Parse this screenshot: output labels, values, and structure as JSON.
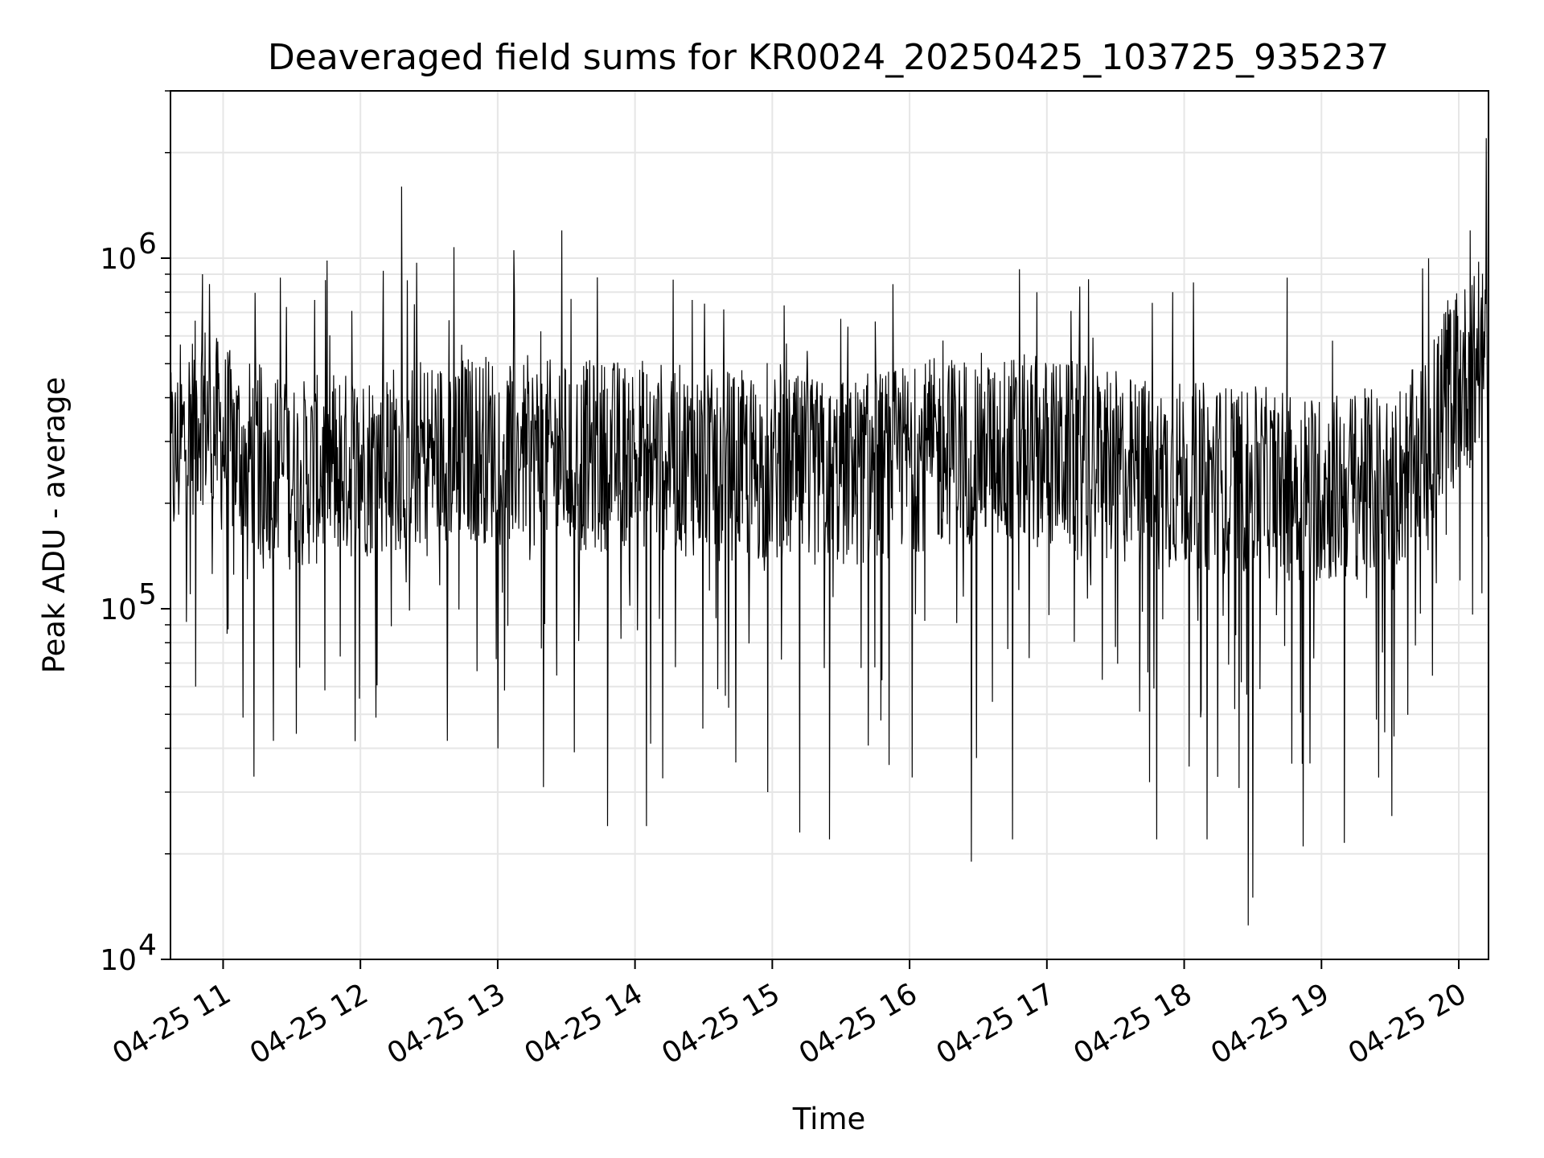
{
  "chart_data": {
    "type": "line",
    "title": "Deaveraged field sums for KR0024_20250425_103725_935237",
    "xlabel": "Time",
    "ylabel": "Peak ADU - average",
    "yscale": "log",
    "ylim": [
      10000,
      3000000
    ],
    "xlim": [
      "2025-04-25 10:37",
      "2025-04-25 20:13"
    ],
    "grid": true,
    "line_color": "#000000",
    "grid_color": "#e6e6e6",
    "x_ticks": [
      {
        "value": "2025-04-25 11:00",
        "label": "04-25 11"
      },
      {
        "value": "2025-04-25 12:00",
        "label": "04-25 12"
      },
      {
        "value": "2025-04-25 13:00",
        "label": "04-25 13"
      },
      {
        "value": "2025-04-25 14:00",
        "label": "04-25 14"
      },
      {
        "value": "2025-04-25 15:00",
        "label": "04-25 15"
      },
      {
        "value": "2025-04-25 16:00",
        "label": "04-25 16"
      },
      {
        "value": "2025-04-25 17:00",
        "label": "04-25 17"
      },
      {
        "value": "2025-04-25 18:00",
        "label": "04-25 18"
      },
      {
        "value": "2025-04-25 19:00",
        "label": "04-25 19"
      },
      {
        "value": "2025-04-25 20:00",
        "label": "04-25 20"
      }
    ],
    "y_ticks": [
      {
        "value": 10000,
        "base": "10",
        "exp": "4"
      },
      {
        "value": 100000,
        "base": "10",
        "exp": "5"
      },
      {
        "value": 1000000,
        "base": "10",
        "exp": "6"
      }
    ],
    "series": [
      {
        "trend": [
          {
            "x": "2025-04-25 10:37",
            "y": 250000
          },
          {
            "x": "2025-04-25 10:50",
            "y": 380000
          },
          {
            "x": "2025-04-25 11:00",
            "y": 300000
          },
          {
            "x": "2025-04-25 11:30",
            "y": 240000
          },
          {
            "x": "2025-04-25 12:00",
            "y": 260000
          },
          {
            "x": "2025-04-25 12:30",
            "y": 280000
          },
          {
            "x": "2025-04-25 13:00",
            "y": 290000
          },
          {
            "x": "2025-04-25 13:30",
            "y": 270000
          },
          {
            "x": "2025-04-25 14:00",
            "y": 280000
          },
          {
            "x": "2025-04-25 14:30",
            "y": 260000
          },
          {
            "x": "2025-04-25 15:00",
            "y": 250000
          },
          {
            "x": "2025-04-25 15:30",
            "y": 240000
          },
          {
            "x": "2025-04-25 16:00",
            "y": 270000
          },
          {
            "x": "2025-04-25 16:30",
            "y": 290000
          },
          {
            "x": "2025-04-25 17:00",
            "y": 280000
          },
          {
            "x": "2025-04-25 17:30",
            "y": 250000
          },
          {
            "x": "2025-04-25 18:00",
            "y": 240000
          },
          {
            "x": "2025-04-25 18:30",
            "y": 230000
          },
          {
            "x": "2025-04-25 19:00",
            "y": 220000
          },
          {
            "x": "2025-04-25 19:30",
            "y": 230000
          },
          {
            "x": "2025-04-25 19:48",
            "y": 280000
          },
          {
            "x": "2025-04-25 19:55",
            "y": 420000
          },
          {
            "x": "2025-04-25 20:13",
            "y": 520000
          }
        ],
        "spikes": [
          {
            "x": "2025-04-25 10:51",
            "y": 900000
          },
          {
            "x": "2025-04-25 11:25",
            "y": 880000
          },
          {
            "x": "2025-04-25 11:40",
            "y": 760000
          },
          {
            "x": "2025-04-25 12:10",
            "y": 920000
          },
          {
            "x": "2025-04-25 12:18",
            "y": 1600000
          },
          {
            "x": "2025-04-25 13:28",
            "y": 1200000
          },
          {
            "x": "2025-04-25 14:25",
            "y": 760000
          },
          {
            "x": "2025-04-25 15:45",
            "y": 660000
          },
          {
            "x": "2025-04-25 16:48",
            "y": 930000
          },
          {
            "x": "2025-04-25 17:55",
            "y": 800000
          },
          {
            "x": "2025-04-25 18:45",
            "y": 880000
          },
          {
            "x": "2025-04-25 20:05",
            "y": 1200000
          },
          {
            "x": "2025-04-25 20:12",
            "y": 2200000
          }
        ],
        "dips": [
          {
            "x": "2025-04-25 10:48",
            "y": 60000
          },
          {
            "x": "2025-04-25 11:22",
            "y": 42000
          },
          {
            "x": "2025-04-25 11:32",
            "y": 44000
          },
          {
            "x": "2025-04-25 12:38",
            "y": 42000
          },
          {
            "x": "2025-04-25 13:20",
            "y": 31000
          },
          {
            "x": "2025-04-25 13:48",
            "y": 24000
          },
          {
            "x": "2025-04-25 14:05",
            "y": 24000
          },
          {
            "x": "2025-04-25 14:58",
            "y": 30000
          },
          {
            "x": "2025-04-25 15:12",
            "y": 23000
          },
          {
            "x": "2025-04-25 15:25",
            "y": 22000
          },
          {
            "x": "2025-04-25 16:27",
            "y": 19000
          },
          {
            "x": "2025-04-25 16:45",
            "y": 22000
          },
          {
            "x": "2025-04-25 17:48",
            "y": 22000
          },
          {
            "x": "2025-04-25 18:10",
            "y": 22000
          },
          {
            "x": "2025-04-25 18:28",
            "y": 12500
          },
          {
            "x": "2025-04-25 18:30",
            "y": 15000
          },
          {
            "x": "2025-04-25 18:52",
            "y": 21000
          },
          {
            "x": "2025-04-25 19:10",
            "y": 21500
          },
          {
            "x": "2025-04-25 19:25",
            "y": 33000
          }
        ]
      }
    ]
  }
}
